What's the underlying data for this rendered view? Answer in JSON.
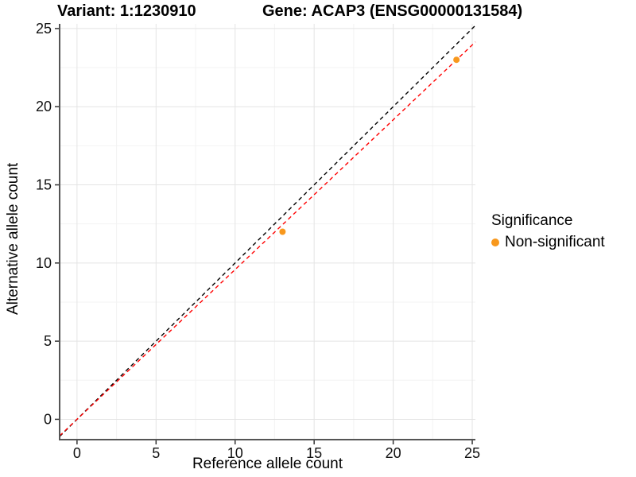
{
  "titles": {
    "variant": "Variant: 1:1230910",
    "gene": "Gene: ACAP3 (ENSG00000131584)"
  },
  "chart_data": {
    "type": "scatter",
    "title": "Variant: 1:1230910    Gene: ACAP3 (ENSG00000131584)",
    "xlabel": "Reference allele count",
    "ylabel": "Alternative allele count",
    "xlim": [
      -1.1,
      25.2
    ],
    "ylim": [
      -1.3,
      25.3
    ],
    "xticks": [
      0,
      5,
      10,
      15,
      20,
      25
    ],
    "yticks": [
      0,
      5,
      10,
      15,
      20,
      25
    ],
    "x_minor": [
      2.5,
      7.5,
      12.5,
      17.5,
      22.5
    ],
    "y_minor": [
      2.5,
      7.5,
      12.5,
      17.5,
      22.5
    ],
    "grid": true,
    "points": [
      {
        "x": 13,
        "y": 12,
        "series": "Non-significant"
      },
      {
        "x": 24,
        "y": 23,
        "series": "Non-significant"
      }
    ],
    "lines": [
      {
        "name": "identity",
        "slope": 1.0,
        "intercept": 0,
        "color": "#000000",
        "style": "dashed"
      },
      {
        "name": "fit",
        "slope": 0.958,
        "intercept": 0,
        "color": "#FF0000",
        "style": "dashed"
      }
    ],
    "legend": {
      "title": "Significance",
      "position": "right",
      "entries": [
        {
          "label": "Non-significant",
          "color": "#F8981D"
        }
      ]
    },
    "colors": {
      "point": "#F8981D",
      "identity_line": "#000000",
      "fit_line": "#FF0000",
      "grid_major": "#E4E4E4",
      "grid_minor": "#F3F3F3",
      "axis_line": "#555555",
      "tick": "#333333"
    }
  }
}
